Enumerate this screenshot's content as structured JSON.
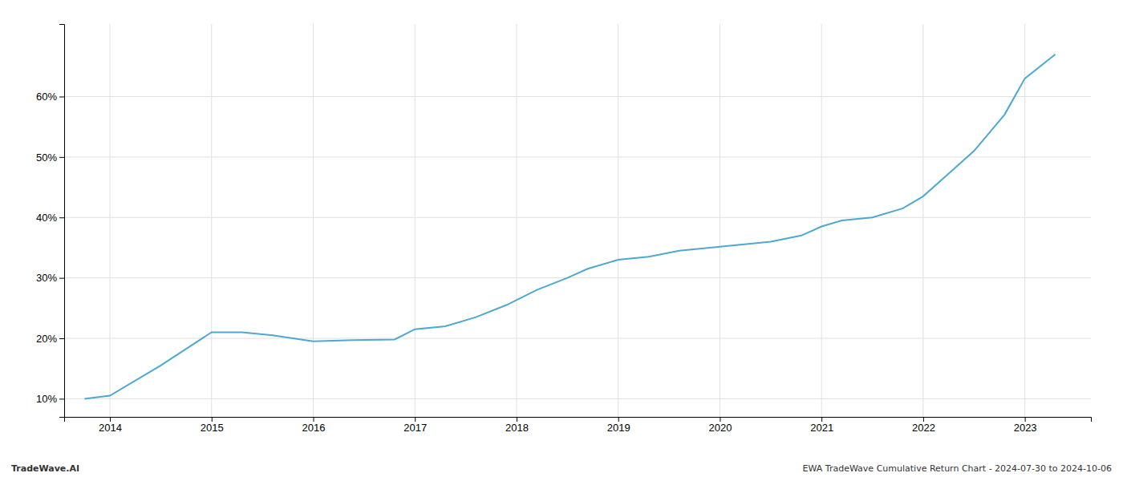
{
  "chart_data": {
    "type": "line",
    "x": [
      2013.75,
      2014.0,
      2014.5,
      2015.0,
      2015.3,
      2015.6,
      2016.0,
      2016.4,
      2016.8,
      2017.0,
      2017.3,
      2017.6,
      2017.9,
      2018.2,
      2018.5,
      2018.7,
      2019.0,
      2019.3,
      2019.6,
      2019.9,
      2020.2,
      2020.5,
      2020.8,
      2021.0,
      2021.2,
      2021.5,
      2021.8,
      2022.0,
      2022.2,
      2022.5,
      2022.8,
      2023.0,
      2023.3
    ],
    "values": [
      10.0,
      10.5,
      15.5,
      21.0,
      21.0,
      20.5,
      19.5,
      19.7,
      19.8,
      21.5,
      22.0,
      23.5,
      25.5,
      28.0,
      30.0,
      31.5,
      33.0,
      33.5,
      34.5,
      35.0,
      35.5,
      36.0,
      37.0,
      38.5,
      39.5,
      40.0,
      41.5,
      43.5,
      46.5,
      51.0,
      57.0,
      63.0,
      67.0
    ],
    "color": "#4ea8d2",
    "xlim": [
      2013.55,
      2023.65
    ],
    "xticks": [
      2014,
      2015,
      2016,
      2017,
      2018,
      2019,
      2020,
      2021,
      2022,
      2023
    ],
    "ylim": [
      7,
      72
    ],
    "yticks": [
      {
        "value": 10,
        "label": "10%"
      },
      {
        "value": 20,
        "label": "20%"
      },
      {
        "value": 30,
        "label": "30%"
      },
      {
        "value": 40,
        "label": "40%"
      },
      {
        "value": 50,
        "label": "50%"
      },
      {
        "value": 60,
        "label": "60%"
      }
    ],
    "grid": true,
    "annotations": [
      "TradeWave.AI",
      "EWA TradeWave Cumulative Return Chart - 2024-07-30 to 2024-10-06"
    ]
  }
}
